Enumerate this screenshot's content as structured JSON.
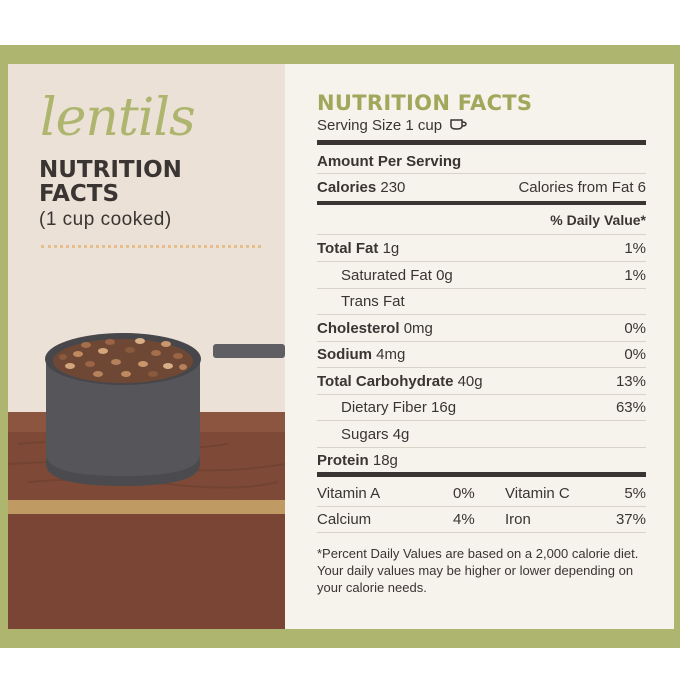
{
  "left": {
    "script_title": "lentils",
    "title_line1": "NUTRITION",
    "title_line2": "FACTS",
    "subtitle": "(1 cup cooked)"
  },
  "label": {
    "title": "NUTRITION FACTS",
    "serving": "Serving Size 1 cup",
    "amount_per_serving": "Amount Per Serving",
    "calories_label": "Calories",
    "calories_value": "230",
    "calories_from_fat": "Calories from Fat 6",
    "daily_value_header": "% Daily Value*",
    "nutrients": [
      {
        "name": "Total Fat",
        "amount": "1g",
        "dv": "1%"
      },
      {
        "name": "Saturated Fat",
        "amount": "0g",
        "dv": "1%"
      },
      {
        "name": "Trans Fat",
        "amount": "",
        "dv": ""
      },
      {
        "name": "Cholesterol",
        "amount": "0mg",
        "dv": "0%"
      },
      {
        "name": "Sodium",
        "amount": "4mg",
        "dv": "0%"
      },
      {
        "name": "Total Carbohydrate",
        "amount": "40g",
        "dv": "13%"
      },
      {
        "name": "Dietary Fiber",
        "amount": "16g",
        "dv": "63%"
      },
      {
        "name": "Sugars",
        "amount": "4g",
        "dv": ""
      },
      {
        "name": "Protein",
        "amount": "18g",
        "dv": ""
      }
    ],
    "vitamins": [
      {
        "name": "Vitamin A",
        "dv": "0%"
      },
      {
        "name": "Vitamin C",
        "dv": "5%"
      },
      {
        "name": "Calcium",
        "dv": "4%"
      },
      {
        "name": "Iron",
        "dv": "37%"
      }
    ],
    "footnote": "*Percent Daily Values are based on a 2,000 calorie diet. Your daily values may be higher or lower depending on your calorie needs."
  },
  "colors": {
    "frame": "#aeb56e",
    "accent": "#a1a85b",
    "text": "#3a3533",
    "left_bg": "#ebe1d6",
    "right_bg": "#f6f2ec",
    "wood": "#7e4a37",
    "pot": "#56565a"
  },
  "icons": {
    "cup": "cup-icon",
    "pot": "pot-icon"
  }
}
